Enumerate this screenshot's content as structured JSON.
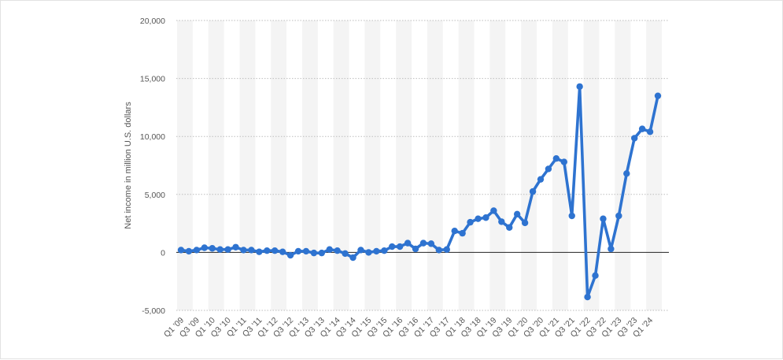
{
  "chart_data": {
    "type": "line",
    "ylabel": "Net income in million U.S. dollars",
    "ylim": [
      -5000,
      20000
    ],
    "yticks": [
      20000,
      15000,
      10000,
      5000,
      0,
      -5000
    ],
    "ytick_labels": [
      "20,000",
      "15,000",
      "10,000",
      "5,000",
      "0",
      "-5,000"
    ],
    "grid": true,
    "line_color": "#2e73d0",
    "categories": [
      "Q1 '09",
      "Q2 '09",
      "Q3 '09",
      "Q4 '09",
      "Q1 '10",
      "Q2 '10",
      "Q3 '10",
      "Q4 '10",
      "Q1 '11",
      "Q2 '11",
      "Q3 '11",
      "Q4 '11",
      "Q1 '12",
      "Q2 '12",
      "Q3 '12",
      "Q4 '12",
      "Q1 '13",
      "Q2 '13",
      "Q3 '13",
      "Q4 '13",
      "Q1 '14",
      "Q2 '14",
      "Q3 '14",
      "Q4 '14",
      "Q1 '15",
      "Q2 '15",
      "Q3 '15",
      "Q4 '15",
      "Q1 '16",
      "Q2 '16",
      "Q3 '16",
      "Q4 '16",
      "Q1 '17",
      "Q2 '17",
      "Q3 '17",
      "Q4 '17",
      "Q1 '18",
      "Q2 '18",
      "Q3 '18",
      "Q4 '18",
      "Q1 '19",
      "Q2 '19",
      "Q3 '19",
      "Q4 '19",
      "Q1 '20",
      "Q2 '20",
      "Q3 '20",
      "Q4 '20",
      "Q1 '21",
      "Q2 '21",
      "Q3 '21",
      "Q4 '21",
      "Q1 '22",
      "Q2 '22",
      "Q3 '22",
      "Q4 '22",
      "Q1 '23",
      "Q2 '23",
      "Q3 '23",
      "Q4 '23",
      "Q1 '24",
      "Q2 '24"
    ],
    "xtick_labels": [
      "Q1 '09",
      "Q3 '09",
      "Q1 '10",
      "Q3 '10",
      "Q1 '11",
      "Q3 '11",
      "Q1 '12",
      "Q3 '12",
      "Q1 '13",
      "Q3 '13",
      "Q1 '14",
      "Q3 '14",
      "Q1 '15",
      "Q3 '15",
      "Q1 '16",
      "Q3 '16",
      "Q1 '17",
      "Q3 '17",
      "Q1 '18",
      "Q3 '18",
      "Q1 '19",
      "Q3 '19",
      "Q1 '20",
      "Q3 '20",
      "Q1 '21",
      "Q3 '21",
      "Q1 '22",
      "Q3 '22",
      "Q1 '23",
      "Q3 '23",
      "Q1 '24"
    ],
    "series": [
      {
        "values": [
          200,
          100,
          200,
          400,
          350,
          250,
          250,
          450,
          200,
          200,
          50,
          150,
          150,
          50,
          -250,
          100,
          100,
          -50,
          -50,
          250,
          150,
          -100,
          -450,
          200,
          0,
          100,
          150,
          500,
          500,
          800,
          300,
          800,
          750,
          200,
          250,
          1850,
          1650,
          2600,
          2900,
          3000,
          3600,
          2650,
          2150,
          3300,
          2550,
          5250,
          6300,
          7200,
          8100,
          7800,
          3150,
          14300,
          -3850,
          -2000,
          2900,
          300,
          3150,
          6800,
          9850,
          10650,
          10400,
          13500
        ]
      }
    ]
  }
}
